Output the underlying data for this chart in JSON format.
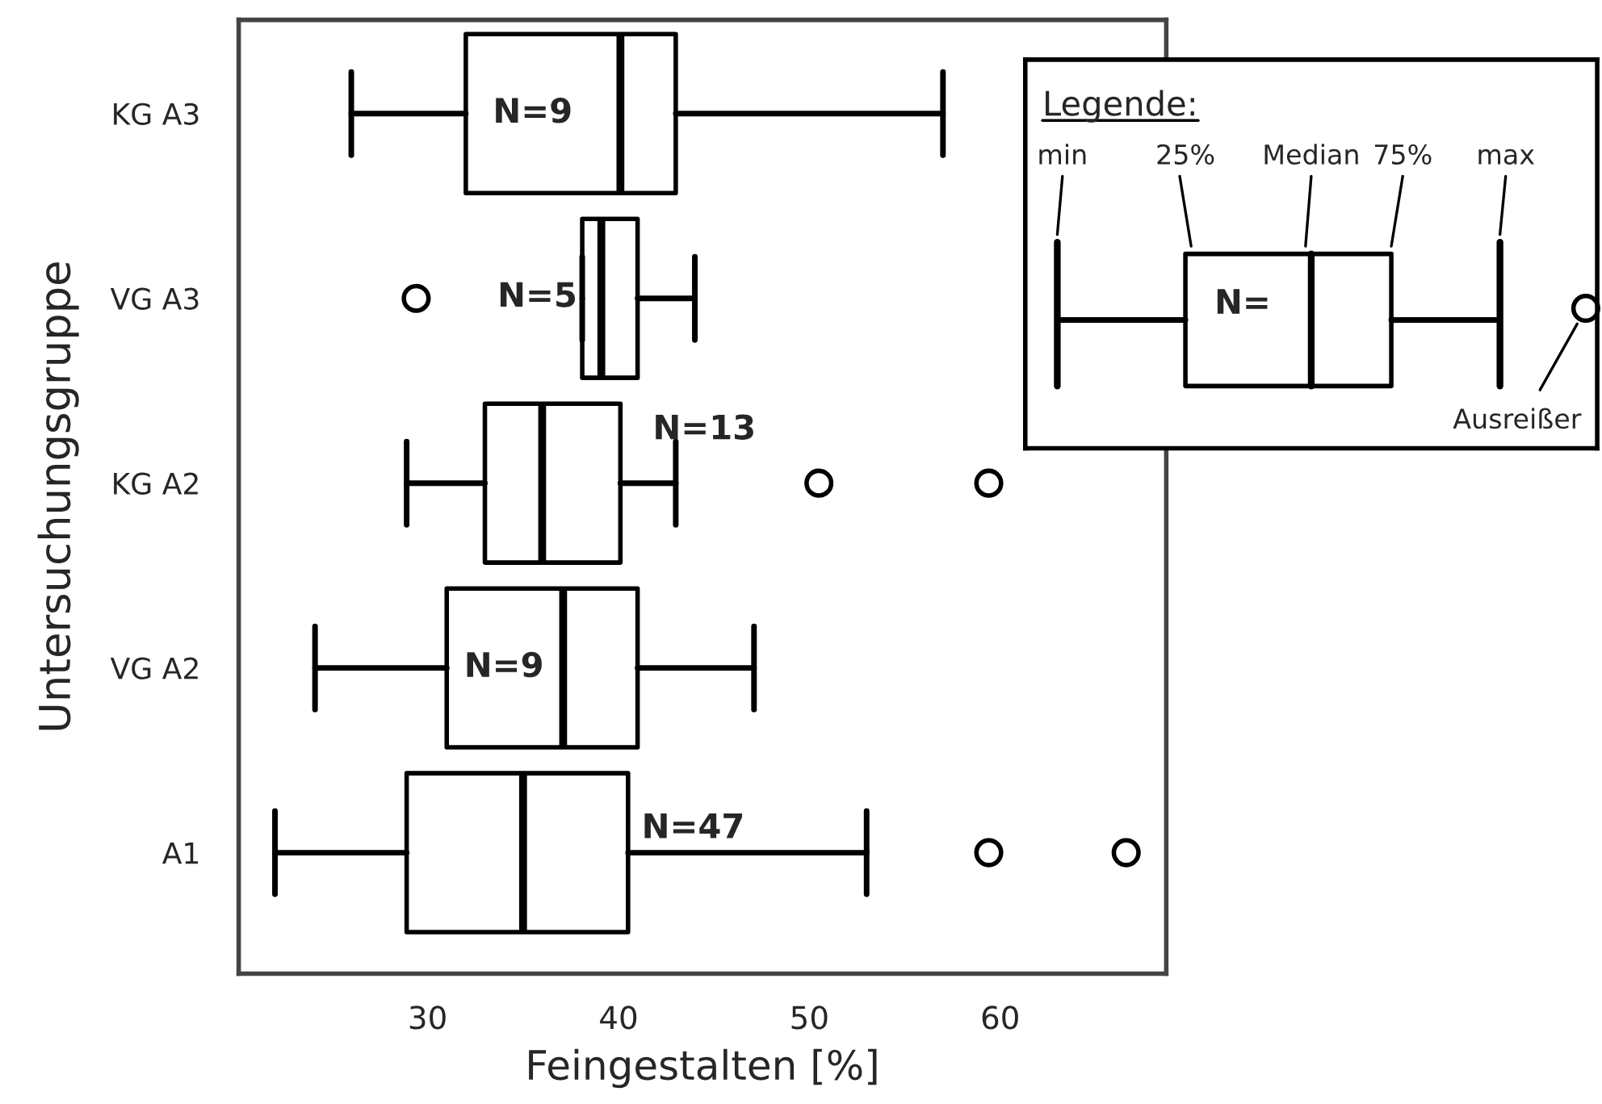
{
  "chart_data": {
    "type": "box",
    "orientation": "horizontal",
    "xlabel": "Feingestalten [%]",
    "ylabel": "Untersuchungsgruppe",
    "categories": [
      "KG A3",
      "VG A3",
      "KG A2",
      "VG A2",
      "A1"
    ],
    "boxes": [
      {
        "low": 26.0,
        "q1": 32.0,
        "median": 40.1,
        "q3": 43.0,
        "high": 57.0
      },
      {
        "low": 38.1,
        "q1": 38.1,
        "median": 39.1,
        "q3": 41.0,
        "high": 44.0,
        "outliers": [
          29.4
        ]
      },
      {
        "low": 28.9,
        "q1": 33.0,
        "median": 36.0,
        "q3": 40.1,
        "high": 43.0,
        "outliers": [
          50.5,
          59.4
        ]
      },
      {
        "low": 24.1,
        "q1": 31.0,
        "median": 37.1,
        "q3": 41.0,
        "high": 47.1
      },
      {
        "low": 22.0,
        "q1": 28.9,
        "median": 35.0,
        "q3": 40.5,
        "high": 53.0,
        "outliers": [
          59.4,
          66.6
        ]
      }
    ],
    "xlim": [
      20.1,
      68.7
    ],
    "xticks": [
      30,
      40,
      50,
      60
    ],
    "annotations": [
      "N=9",
      "N=5",
      "N=13",
      "N=9",
      "N=47",
      "Legende:",
      "min",
      "25%",
      "Median",
      "75%",
      "max",
      "N=",
      "Ausreißer"
    ]
  }
}
